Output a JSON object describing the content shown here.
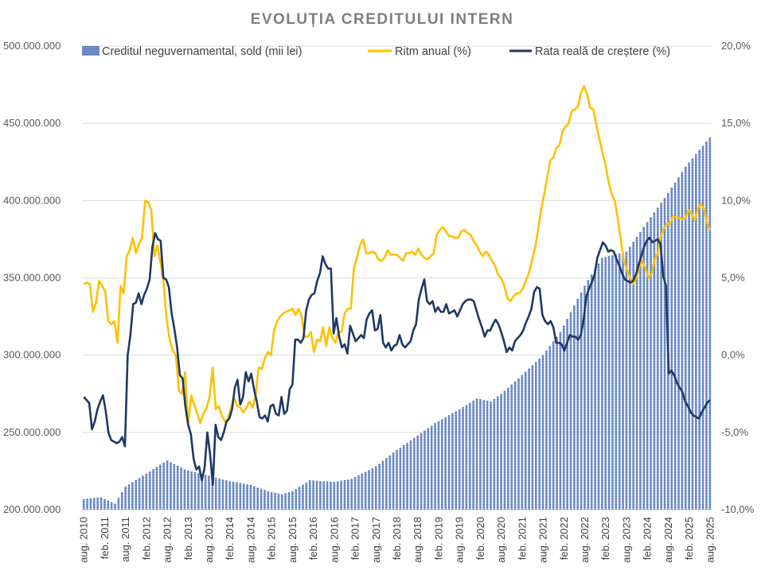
{
  "chart_data": {
    "type": "bar+line",
    "title": "EVOLUȚIA CREDITULUI INTERN",
    "legend_position": "top",
    "grid": true,
    "colors": {
      "bars": "#4a6fb5",
      "ritm_anual": "#ffc000",
      "rata_reala": "#1f3864"
    },
    "y_left": {
      "min": 200000000,
      "max": 500000000,
      "step": 50000000,
      "tick_labels": [
        "200.000.000",
        "250.000.000",
        "300.000.000",
        "350.000.000",
        "400.000.000",
        "450.000.000",
        "500.000.000"
      ]
    },
    "y_right": {
      "min": -10,
      "max": 20,
      "step": 5,
      "tick_labels": [
        "-10,0%",
        "-5,0%",
        "0,0%",
        "5,0%",
        "10,0%",
        "15,0%",
        "20,0%"
      ]
    },
    "x_start": "2010-08",
    "x_end": "2025-08",
    "x_tick_labels": [
      "aug. 2010",
      "feb. 2011",
      "aug. 2011",
      "feb. 2012",
      "aug. 2012",
      "feb. 2013",
      "aug. 2013",
      "feb. 2014",
      "aug. 2014",
      "feb. 2015",
      "aug. 2015",
      "feb. 2016",
      "aug. 2016",
      "feb. 2017",
      "aug. 2017",
      "feb. 2018",
      "aug. 2018",
      "feb. 2019",
      "aug. 2019",
      "feb. 2020",
      "aug. 2020",
      "feb. 2021",
      "aug. 2021",
      "feb. 2022",
      "aug. 2022",
      "feb. 2023",
      "aug. 2023",
      "feb. 2024",
      "aug. 2024",
      "feb. 2025",
      "aug. 2025"
    ],
    "series": [
      {
        "name": "Creditul neguvernamental, sold (mii lei)",
        "kind": "bar",
        "axis": "left",
        "anchors": [
          [
            "2010-08",
            207
          ],
          [
            "2011-01",
            208
          ],
          [
            "2011-05",
            204
          ],
          [
            "2011-08",
            215
          ],
          [
            "2012-01",
            222
          ],
          [
            "2012-08",
            232
          ],
          [
            "2013-01",
            226
          ],
          [
            "2013-08",
            222
          ],
          [
            "2014-01",
            219
          ],
          [
            "2014-08",
            216
          ],
          [
            "2015-01",
            212
          ],
          [
            "2015-05",
            210
          ],
          [
            "2015-08",
            212
          ],
          [
            "2016-01",
            219
          ],
          [
            "2016-08",
            218
          ],
          [
            "2017-01",
            220
          ],
          [
            "2017-08",
            228
          ],
          [
            "2018-01",
            237
          ],
          [
            "2018-08",
            248
          ],
          [
            "2019-01",
            256
          ],
          [
            "2019-08",
            265
          ],
          [
            "2020-01",
            272
          ],
          [
            "2020-05",
            270
          ],
          [
            "2020-08",
            275
          ],
          [
            "2021-01",
            285
          ],
          [
            "2021-08",
            300
          ],
          [
            "2022-01",
            315
          ],
          [
            "2022-08",
            345
          ],
          [
            "2023-01",
            363
          ],
          [
            "2023-08",
            367
          ],
          [
            "2024-01",
            383
          ],
          [
            "2024-08",
            405
          ],
          [
            "2025-01",
            422
          ],
          [
            "2025-08",
            441
          ]
        ]
      },
      {
        "name": "Ritm anual (%)",
        "kind": "line",
        "axis": "right",
        "points": [
          4.6,
          4.7,
          4.6,
          2.8,
          3.4,
          4.8,
          4.5,
          4.1,
          2.2,
          2.0,
          2.2,
          0.8,
          4.5,
          4.0,
          6.4,
          6.8,
          7.6,
          6.6,
          7.2,
          7.6,
          10.0,
          9.9,
          9.4,
          6.4,
          7.1,
          6.0,
          4.7,
          2.3,
          1.0,
          0.3,
          0.0,
          -2.3,
          -2.5,
          -1.1,
          -4.5,
          -2.6,
          -3.2,
          -3.8,
          -4.4,
          -3.8,
          -3.4,
          -2.7,
          -0.8,
          -3.5,
          -3.3,
          -3.9,
          -4.3,
          -4.1,
          -3.4,
          -2.8,
          -3.3,
          -3.4,
          -3.7,
          -3.4,
          -3.0,
          -3.4,
          -2.6,
          -0.8,
          -0.9,
          -0.2,
          0.2,
          0.0,
          1.6,
          2.2,
          2.5,
          2.7,
          2.8,
          2.9,
          3.0,
          2.6,
          3.0,
          2.5,
          1.2,
          1.2,
          1.5,
          0.2,
          1.0,
          0.9,
          1.8,
          0.6,
          1.8,
          1.1,
          0.8,
          1.5,
          1.5,
          2.7,
          3.0,
          3.0,
          5.6,
          6.3,
          7.1,
          7.5,
          6.6,
          6.6,
          6.7,
          6.6,
          6.2,
          6.1,
          6.3,
          6.8,
          6.5,
          6.5,
          6.5,
          6.3,
          6.1,
          6.6,
          6.6,
          6.7,
          6.5,
          6.9,
          6.5,
          6.3,
          6.2,
          6.4,
          6.6,
          7.8,
          8.1,
          8.3,
          8.0,
          7.7,
          7.7,
          7.6,
          7.6,
          8.0,
          8.1,
          7.9,
          7.8,
          7.4,
          7.1,
          6.7,
          6.4,
          6.7,
          6.5,
          6.1,
          5.8,
          5.2,
          5.0,
          4.5,
          3.7,
          3.5,
          3.8,
          4.0,
          4.0,
          4.3,
          4.8,
          5.3,
          6.1,
          6.9,
          8.1,
          9.4,
          10.4,
          11.5,
          12.6,
          12.8,
          13.4,
          13.6,
          14.5,
          14.8,
          15.0,
          15.8,
          15.9,
          16.1,
          17.0,
          17.4,
          16.9,
          16.0,
          15.9,
          14.9,
          14.0,
          13.1,
          12.3,
          11.2,
          10.4,
          10.0,
          8.8,
          7.4,
          6.1,
          5.5,
          5.0,
          4.6,
          5.0,
          5.7,
          6.1,
          5.6,
          5.0,
          5.3,
          6.2,
          6.6,
          7.7,
          8.2,
          8.5,
          8.5,
          9.0,
          8.9,
          8.9,
          8.8,
          8.9,
          9.4,
          9.2,
          8.7,
          9.4,
          9.8,
          9.5,
          8.6,
          8.1
        ]
      },
      {
        "name": "Rata reală de creștere (%)",
        "kind": "line",
        "axis": "right",
        "points": [
          -2.7,
          -2.9,
          -3.1,
          -4.8,
          -4.3,
          -3.5,
          -3.0,
          -2.6,
          -3.6,
          -5.0,
          -5.5,
          -5.6,
          -5.7,
          -5.6,
          -5.3,
          -5.9,
          0.0,
          1.3,
          3.3,
          3.4,
          4.0,
          3.3,
          3.9,
          4.3,
          4.9,
          7.0,
          7.9,
          7.5,
          7.4,
          5.0,
          4.9,
          4.4,
          2.7,
          1.7,
          0.5,
          -1.3,
          -1.5,
          -3.3,
          -4.5,
          -5.1,
          -6.7,
          -7.4,
          -7.2,
          -8.1,
          -7.3,
          -5.0,
          -6.4,
          -8.4,
          -4.5,
          -5.3,
          -5.5,
          -5.0,
          -4.3,
          -4.1,
          -3.5,
          -2.1,
          -1.6,
          -3.2,
          -2.7,
          -1.1,
          -1.7,
          -1.2,
          -2.2,
          -3.0,
          -4.0,
          -4.1,
          -3.9,
          -4.3,
          -3.3,
          -3.2,
          -3.8,
          -3.9,
          -2.7,
          -3.8,
          -3.6,
          -2.2,
          -1.9,
          1.0,
          1.0,
          0.8,
          1.1,
          2.9,
          3.6,
          3.9,
          4.0,
          4.8,
          5.3,
          6.4,
          5.9,
          5.6,
          5.6,
          1.4,
          2.4,
          1.2,
          0.5,
          0.7,
          0.1,
          1.9,
          1.4,
          0.9,
          1.1,
          1.3,
          1.1,
          2.3,
          2.7,
          2.9,
          1.6,
          1.7,
          2.6,
          0.8,
          0.5,
          0.8,
          0.3,
          0.6,
          0.7,
          1.3,
          0.7,
          0.5,
          0.7,
          0.9,
          1.6,
          2.0,
          3.6,
          4.3,
          4.9,
          3.5,
          3.3,
          3.5,
          2.8,
          3.1,
          2.8,
          2.8,
          3.3,
          2.7,
          2.8,
          2.9,
          2.5,
          2.9,
          3.3,
          3.5,
          3.6,
          3.6,
          3.5,
          2.9,
          2.3,
          1.8,
          1.2,
          1.6,
          1.6,
          2.0,
          2.3,
          2.0,
          1.5,
          0.9,
          0.2,
          0.5,
          0.3,
          0.9,
          1.1,
          1.3,
          1.6,
          2.1,
          2.5,
          3.0,
          4.1,
          4.4,
          4.3,
          2.6,
          2.2,
          2.0,
          2.2,
          1.8,
          0.8,
          0.8,
          0.7,
          0.3,
          0.8,
          1.3,
          1.2,
          1.2,
          1.0,
          1.3,
          2.3,
          3.8,
          4.3,
          4.7,
          5.2,
          6.3,
          6.8,
          7.3,
          7.1,
          6.7,
          6.8,
          6.7,
          6.2,
          5.8,
          5.3,
          4.9,
          4.8,
          4.7,
          4.8,
          5.2,
          5.8,
          6.4,
          7.0,
          7.4,
          7.6,
          7.3,
          7.4,
          7.5,
          7.2,
          5.1,
          4.5,
          -1.2,
          -1.0,
          -1.3,
          -1.8,
          -2.1,
          -2.4,
          -3.0,
          -3.3,
          -3.7,
          -3.9,
          -4.0,
          -4.1,
          -3.7,
          -3.4,
          -3.1,
          -2.9
        ]
      }
    ]
  }
}
